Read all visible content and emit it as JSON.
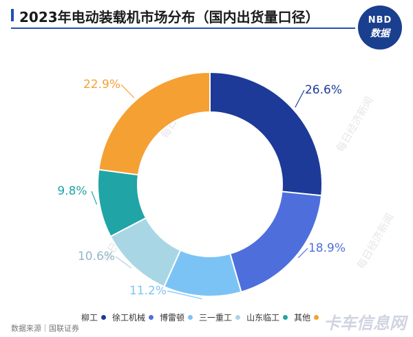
{
  "title": "2023年电动装载机市场分布（国内出货量口径）",
  "badge": {
    "line1": "NBD",
    "line2": "数据"
  },
  "source": "数据来源｜国联证券",
  "watermark_text": "每日经济新闻",
  "corner_watermark": "卡车信息网",
  "chart_data": {
    "type": "pie",
    "donut": true,
    "title": "2023年电动装载机市场分布（国内出货量口径）",
    "legend_position": "bottom",
    "categories": [
      "柳工",
      "徐工机械",
      "博雷顿",
      "三一重工",
      "山东临工",
      "其他"
    ],
    "values": [
      26.6,
      18.9,
      11.2,
      10.6,
      9.8,
      22.9
    ],
    "labels": [
      "26.6%",
      "18.9%",
      "11.2%",
      "10.6%",
      "9.8%",
      "22.9%"
    ],
    "colors": [
      "#1d3a99",
      "#4e6fdb",
      "#7cc3f5",
      "#a9d6e5",
      "#20a4a6",
      "#f5a033"
    ]
  }
}
